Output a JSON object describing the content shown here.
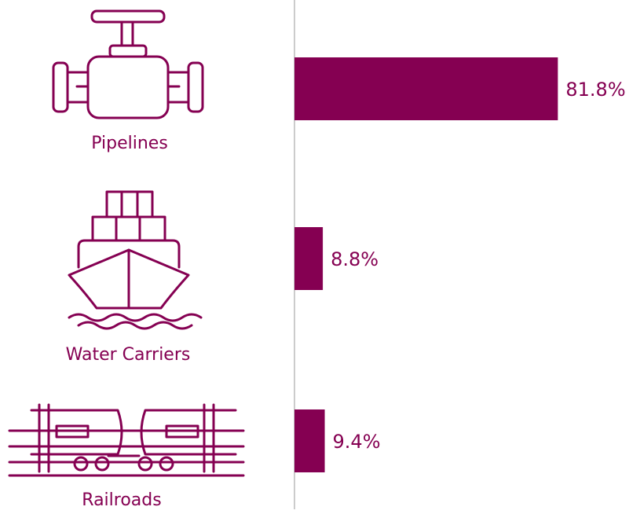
{
  "chart_data": {
    "type": "bar",
    "orientation": "horizontal",
    "categories": [
      "Pipelines",
      "Water Carriers",
      "Railroads"
    ],
    "values": [
      81.8,
      8.8,
      9.4
    ],
    "value_labels": [
      "81.8%",
      "8.8%",
      "9.4%"
    ],
    "color": "#850052"
  }
}
